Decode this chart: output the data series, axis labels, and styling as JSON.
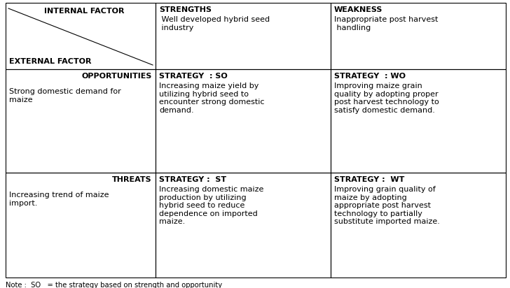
{
  "figsize": [
    7.28,
    4.12
  ],
  "dpi": 100,
  "bg_color": "#ffffff",
  "note": "Note :  SO   = the strategy based on strength and opportunity",
  "cells": {
    "header_internal": {
      "text_top": "INTERNAL FACTOR",
      "text_bottom": "EXTERNAL FACTOR",
      "fontsize": 8.0
    },
    "header_strengths": {
      "title": "STRENGTHS",
      "body": " Well developed hybrid seed\n industry",
      "fontsize": 8.0
    },
    "header_weakness": {
      "title": "WEAKNESS",
      "body": "Inappropriate post harvest\n handling",
      "fontsize": 8.0
    },
    "opportunities": {
      "title": "OPPORTUNITIES",
      "body": "Strong domestic demand for\nmaize",
      "fontsize": 8.0
    },
    "strategy_so": {
      "title": "STRATEGY  : SO",
      "body": "Increasing maize yield by\nutilizing hybrid seed to\nencounter strong domestic\ndemand.",
      "fontsize": 8.0
    },
    "strategy_wo": {
      "title": "STRATEGY  : WO",
      "body": "Improving maize grain\nquality by adopting proper\npost harvest technology to\nsatisfy domestic demand.",
      "fontsize": 8.0
    },
    "threats": {
      "title": "THREATS",
      "body": "Increasing trend of maize\nimport.",
      "fontsize": 8.0
    },
    "strategy_st": {
      "title": "STRATEGY :  ST",
      "body": "Increasing domestic maize\nproduction by utilizing\nhybrid seed to reduce\ndependence on imported\nmaize.",
      "fontsize": 8.0
    },
    "strategy_wt": {
      "title": "STRATEGY :  WT",
      "body": "Improving grain quality of\nmaize by adopting\nappropriate post harvest\ntechnology to partially\nsubstitute imported maize.",
      "fontsize": 8.0
    }
  },
  "line_color": "#000000",
  "line_width": 0.8,
  "text_color": "#000000",
  "note_fontsize": 7.2
}
